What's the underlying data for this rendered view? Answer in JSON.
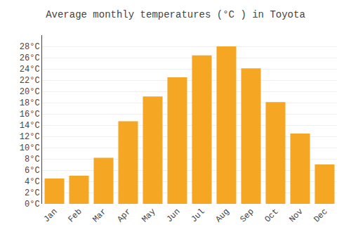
{
  "chart_data": {
    "type": "bar",
    "title": "Average monthly temperatures (°C ) in Toyota",
    "categories": [
      "Jan",
      "Feb",
      "Mar",
      "Apr",
      "May",
      "Jun",
      "Jul",
      "Aug",
      "Sep",
      "Oct",
      "Nov",
      "Dec"
    ],
    "values": [
      4.5,
      5.0,
      8.2,
      14.7,
      19.1,
      22.5,
      26.4,
      28.0,
      24.1,
      18.1,
      12.5,
      7.0
    ],
    "color": "#F5A623",
    "ylim": [
      0,
      30
    ],
    "yticks": [
      {
        "value": 0,
        "label": "0°C"
      },
      {
        "value": 2,
        "label": "2°C"
      },
      {
        "value": 4,
        "label": "4°C"
      },
      {
        "value": 6,
        "label": "6°C"
      },
      {
        "value": 8,
        "label": "8°C"
      },
      {
        "value": 10,
        "label": "10°C"
      },
      {
        "value": 12,
        "label": "12°C"
      },
      {
        "value": 14,
        "label": "14°C"
      },
      {
        "value": 16,
        "label": "16°C"
      },
      {
        "value": 18,
        "label": "18°C"
      },
      {
        "value": 20,
        "label": "20°C"
      },
      {
        "value": 22,
        "label": "22°C"
      },
      {
        "value": 24,
        "label": "24°C"
      },
      {
        "value": 26,
        "label": "26°C"
      },
      {
        "value": 28,
        "label": "28°C"
      }
    ],
    "grid": true
  }
}
